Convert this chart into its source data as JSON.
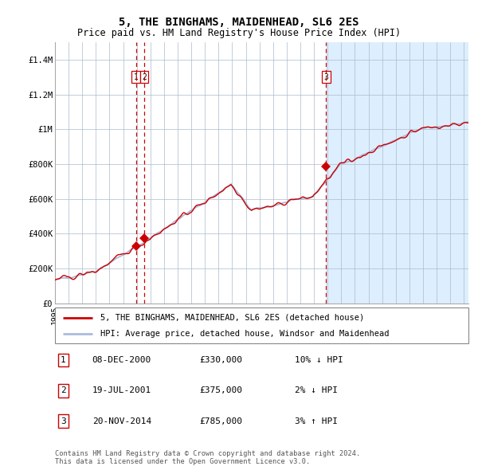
{
  "title": "5, THE BINGHAMS, MAIDENHEAD, SL6 2ES",
  "subtitle": "Price paid vs. HM Land Registry's House Price Index (HPI)",
  "ylim": [
    0,
    1500000
  ],
  "yticks": [
    0,
    200000,
    400000,
    600000,
    800000,
    1000000,
    1200000,
    1400000
  ],
  "ytick_labels": [
    "£0",
    "£200K",
    "£400K",
    "£600K",
    "£800K",
    "£1M",
    "£1.2M",
    "£1.4M"
  ],
  "hpi_color": "#aabbdd",
  "property_color": "#cc0000",
  "bg_color_after": "#ddeeff",
  "dashed_line_color": "#cc0000",
  "transaction_dates": [
    "2000-12-08",
    "2001-07-19",
    "2014-11-20"
  ],
  "transaction_prices": [
    330000,
    375000,
    785000
  ],
  "transaction_labels": [
    "1",
    "2",
    "3"
  ],
  "legend_property_label": "5, THE BINGHAMS, MAIDENHEAD, SL6 2ES (detached house)",
  "legend_hpi_label": "HPI: Average price, detached house, Windsor and Maidenhead",
  "table_rows": [
    [
      "1",
      "08-DEC-2000",
      "£330,000",
      "10% ↓ HPI"
    ],
    [
      "2",
      "19-JUL-2001",
      "£375,000",
      "2% ↓ HPI"
    ],
    [
      "3",
      "20-NOV-2014",
      "£785,000",
      "3% ↑ HPI"
    ]
  ],
  "footer": "Contains HM Land Registry data © Crown copyright and database right 2024.\nThis data is licensed under the Open Government Licence v3.0.",
  "title_fontsize": 10,
  "subtitle_fontsize": 8.5,
  "tick_fontsize": 7.5,
  "start_year": 1995,
  "end_year": 2025
}
